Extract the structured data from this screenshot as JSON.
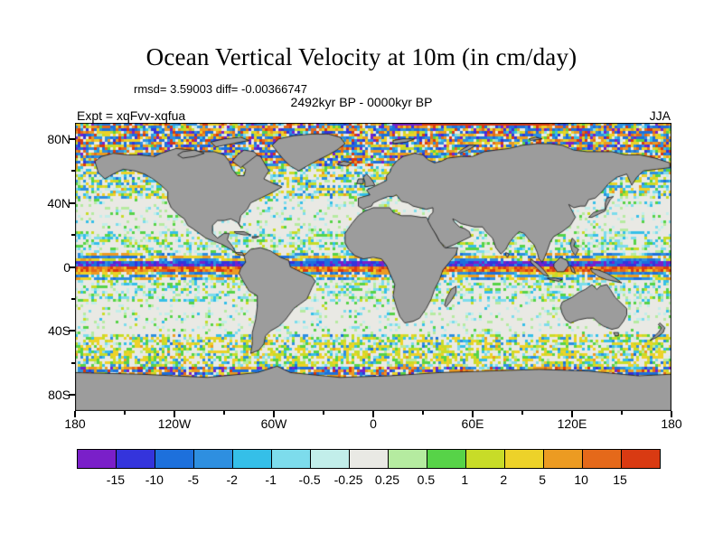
{
  "title": "Ocean Vertical Velocity at 10m (in cm/day)",
  "header": {
    "stats": "rmsd= 3.59003 diff= -0.00366747",
    "period": "2492kyr BP - 0000kyr BP",
    "experiment": "Expt = xqFvv-xqfua",
    "season": "JJA"
  },
  "chart_data": {
    "type": "heatmap",
    "subtype": "global-ocean-map-difference-field",
    "title": "Ocean Vertical Velocity at 10m (in cm/day)",
    "units": "cm/day",
    "stats": {
      "rmsd": 3.59003,
      "diff": -0.00366747
    },
    "experiment": "xqFvv-xqfua",
    "period": "2492kyr BP - 0000kyr BP",
    "season": "JJA",
    "x_axis": {
      "range_deg": [
        -180,
        180
      ],
      "tick_positions_deg": [
        -180,
        -120,
        -60,
        0,
        60,
        120,
        180
      ],
      "tick_labels": [
        "180",
        "120W",
        "60W",
        "0",
        "60E",
        "120E",
        "180"
      ]
    },
    "y_axis": {
      "range_deg": [
        -90,
        90
      ],
      "tick_positions_deg": [
        80,
        40,
        0,
        -40,
        -80
      ],
      "tick_labels": [
        "80N",
        "40N",
        "0",
        "40S",
        "80S"
      ]
    },
    "colorbar": {
      "levels": [
        -15,
        -10,
        -5,
        -2,
        -1,
        -0.5,
        -0.25,
        0.25,
        0.5,
        1,
        2,
        5,
        10,
        15
      ],
      "tick_labels": [
        "-15",
        "-10",
        "-5",
        "-2",
        "-1",
        "-0.5",
        "-0.25",
        "0.25",
        "0.5",
        "1",
        "2",
        "5",
        "10",
        "15"
      ],
      "colors": [
        "#7a1fc9",
        "#3434dc",
        "#1d70dc",
        "#2e8fe0",
        "#35bfe8",
        "#7ddcec",
        "#c2eeea",
        "#e9e9e4",
        "#b5eba0",
        "#57d348",
        "#c8dc28",
        "#edd229",
        "#ec9b22",
        "#e5691a",
        "#d93a12"
      ]
    },
    "land_color": "#9c9c9c",
    "field_note": "Speckled gridded anomaly field spanning the colorbar range; strongest zonal bands at the equator, dense multicolour speckle at high latitudes and the Southern Ocean, near-zero (white) subtropical gyres."
  }
}
